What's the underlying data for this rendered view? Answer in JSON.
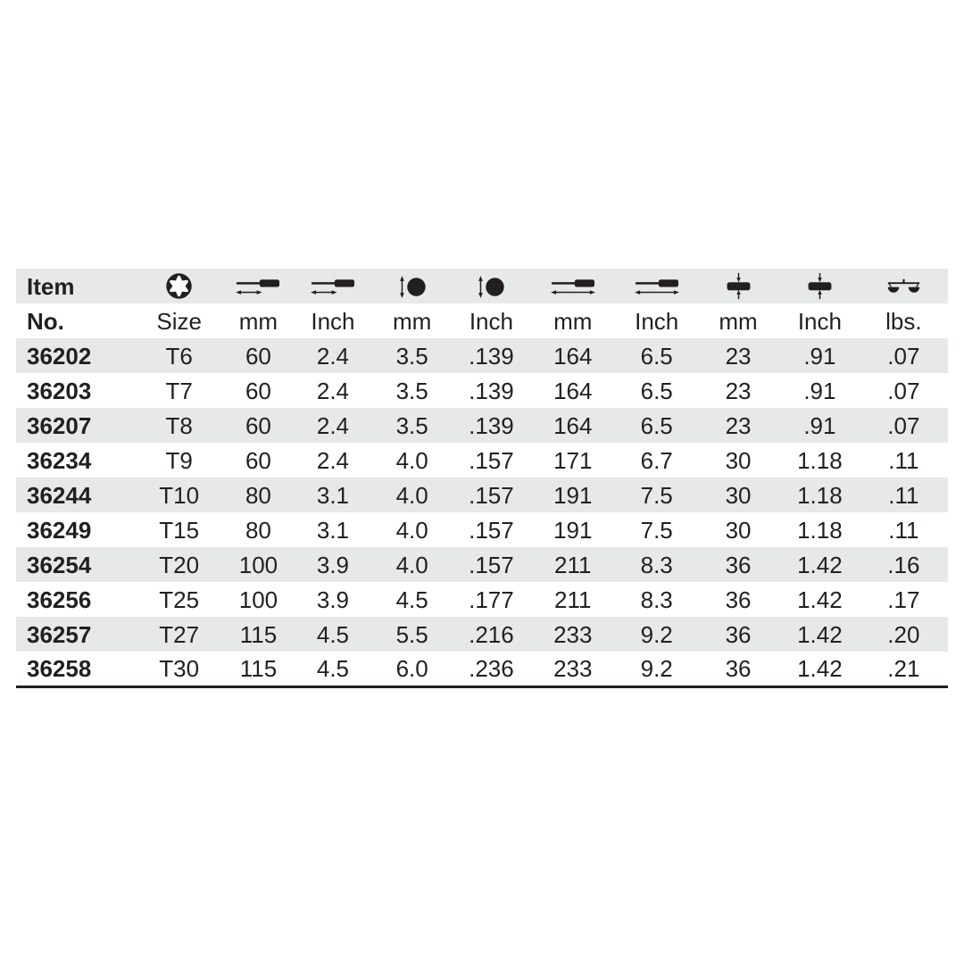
{
  "table": {
    "header": {
      "item_label": "Item",
      "no_label": "No.",
      "columns": [
        {
          "icon": "torx-star-icon",
          "label": "Size"
        },
        {
          "icon": "blade-length-icon",
          "label": "mm"
        },
        {
          "icon": "blade-length-icon",
          "label": "Inch"
        },
        {
          "icon": "tip-diameter-icon",
          "label": "mm"
        },
        {
          "icon": "tip-diameter-icon",
          "label": "Inch"
        },
        {
          "icon": "overall-length-icon",
          "label": "mm"
        },
        {
          "icon": "overall-length-icon",
          "label": "Inch"
        },
        {
          "icon": "handle-diameter-icon",
          "label": "mm"
        },
        {
          "icon": "handle-diameter-icon",
          "label": "Inch"
        },
        {
          "icon": "weight-scale-icon",
          "label": "lbs."
        }
      ]
    },
    "rows": [
      [
        "36202",
        "T6",
        "60",
        "2.4",
        "3.5",
        ".139",
        "164",
        "6.5",
        "23",
        ".91",
        ".07"
      ],
      [
        "36203",
        "T7",
        "60",
        "2.4",
        "3.5",
        ".139",
        "164",
        "6.5",
        "23",
        ".91",
        ".07"
      ],
      [
        "36207",
        "T8",
        "60",
        "2.4",
        "3.5",
        ".139",
        "164",
        "6.5",
        "23",
        ".91",
        ".07"
      ],
      [
        "36234",
        "T9",
        "60",
        "2.4",
        "4.0",
        ".157",
        "171",
        "6.7",
        "30",
        "1.18",
        ".11"
      ],
      [
        "36244",
        "T10",
        "80",
        "3.1",
        "4.0",
        ".157",
        "191",
        "7.5",
        "30",
        "1.18",
        ".11"
      ],
      [
        "36249",
        "T15",
        "80",
        "3.1",
        "4.0",
        ".157",
        "191",
        "7.5",
        "30",
        "1.18",
        ".11"
      ],
      [
        "36254",
        "T20",
        "100",
        "3.9",
        "4.0",
        ".157",
        "211",
        "8.3",
        "36",
        "1.42",
        ".16"
      ],
      [
        "36256",
        "T25",
        "100",
        "3.9",
        "4.5",
        ".177",
        "211",
        "8.3",
        "36",
        "1.42",
        ".17"
      ],
      [
        "36257",
        "T27",
        "115",
        "4.5",
        "5.5",
        ".216",
        "233",
        "9.2",
        "36",
        "1.42",
        ".20"
      ],
      [
        "36258",
        "T30",
        "115",
        "4.5",
        "6.0",
        ".236",
        "233",
        "9.2",
        "36",
        "1.42",
        ".21"
      ]
    ]
  },
  "colors": {
    "row_stripe": "#e7e8e8",
    "text": "#231f20",
    "bottom_border": "#231f20"
  }
}
